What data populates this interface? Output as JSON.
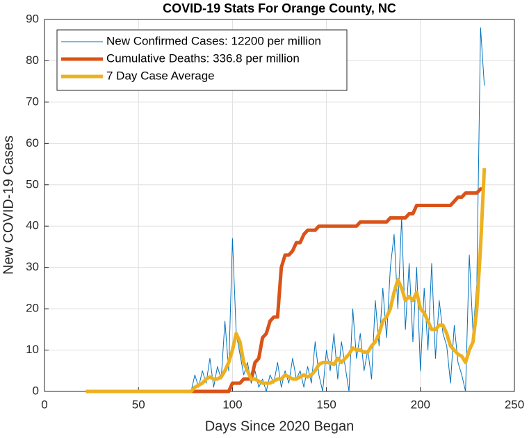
{
  "chart_data": {
    "type": "line",
    "title": "COVID-19 Stats For Orange County, NC",
    "x_label": "Days Since 2020 Began",
    "y_label": "New COVID-19 Cases",
    "x": [
      22,
      24,
      26,
      28,
      30,
      32,
      34,
      36,
      38,
      40,
      42,
      44,
      46,
      48,
      50,
      52,
      54,
      56,
      58,
      60,
      62,
      64,
      66,
      68,
      70,
      72,
      74,
      76,
      78,
      80,
      82,
      84,
      86,
      88,
      90,
      92,
      94,
      96,
      98,
      100,
      102,
      104,
      106,
      108,
      110,
      112,
      114,
      116,
      118,
      120,
      122,
      124,
      126,
      128,
      130,
      132,
      134,
      136,
      138,
      140,
      142,
      144,
      146,
      148,
      150,
      152,
      154,
      156,
      158,
      160,
      162,
      164,
      166,
      168,
      170,
      172,
      174,
      176,
      178,
      180,
      182,
      184,
      186,
      188,
      190,
      192,
      194,
      196,
      198,
      200,
      202,
      204,
      206,
      208,
      210,
      212,
      214,
      216,
      218,
      220,
      222,
      224,
      226,
      228,
      230,
      232,
      234
    ],
    "series": [
      {
        "name": "New Confirmed Cases: 12200 per million",
        "color": "#0072BD",
        "width": 1,
        "values": [
          0,
          0,
          0,
          0,
          0,
          0,
          0,
          0,
          0,
          0,
          0,
          0,
          0,
          0,
          0,
          0,
          0,
          0,
          0,
          0,
          0,
          0,
          0,
          0,
          0,
          0,
          0,
          0,
          0,
          4,
          1,
          5,
          2,
          8,
          1,
          6,
          3,
          17,
          5,
          37,
          14,
          9,
          4,
          7,
          2,
          5,
          1,
          3,
          0,
          4,
          2,
          7,
          1,
          5,
          2,
          8,
          3,
          5,
          1,
          6,
          2,
          12,
          4,
          0,
          10,
          5,
          14,
          3,
          12,
          6,
          0,
          20,
          8,
          14,
          5,
          10,
          3,
          22,
          11,
          25,
          13,
          30,
          38,
          20,
          42,
          15,
          31,
          12,
          30,
          5,
          25,
          10,
          31,
          8,
          22,
          14,
          11,
          2,
          16,
          7,
          4,
          0,
          33,
          14,
          26,
          88,
          74
        ]
      },
      {
        "name": "Cumulative Deaths: 336.8 per million",
        "color": "#D95319",
        "width": 5,
        "values": [
          0,
          0,
          0,
          0,
          0,
          0,
          0,
          0,
          0,
          0,
          0,
          0,
          0,
          0,
          0,
          0,
          0,
          0,
          0,
          0,
          0,
          0,
          0,
          0,
          0,
          0,
          0,
          0,
          0,
          0,
          0,
          0,
          0,
          0,
          0,
          0,
          0,
          0,
          0,
          2,
          2,
          2,
          3,
          3,
          3,
          7,
          8,
          13,
          14,
          17,
          18,
          18,
          30,
          33,
          33,
          34,
          36,
          36,
          38,
          39,
          39,
          39,
          40,
          40,
          40,
          40,
          40,
          40,
          40,
          40,
          40,
          40,
          40,
          41,
          41,
          41,
          41,
          41,
          41,
          41,
          41,
          42,
          42,
          42,
          42,
          42,
          43,
          43,
          45,
          45,
          45,
          45,
          45,
          45,
          45,
          45,
          45,
          45,
          46,
          47,
          47,
          48,
          48,
          48,
          48,
          49,
          49
        ]
      },
      {
        "name": "7 Day Case Average",
        "color": "#EDB120",
        "width": 5,
        "values": [
          0,
          0,
          0,
          0,
          0,
          0,
          0,
          0,
          0,
          0,
          0,
          0,
          0,
          0,
          0,
          0,
          0,
          0,
          0,
          0,
          0,
          0,
          0,
          0,
          0,
          0,
          0,
          0,
          0,
          1,
          1.5,
          2,
          3,
          3.5,
          3,
          3,
          3.5,
          5,
          7,
          10,
          14,
          12,
          7,
          5,
          3,
          3,
          2.5,
          2,
          2,
          2,
          2.5,
          3,
          3,
          4,
          3.5,
          3,
          3,
          3.5,
          4,
          3.5,
          4,
          5,
          6.5,
          7,
          7,
          7,
          6.5,
          8,
          7,
          8,
          9,
          10.5,
          10,
          10,
          9.5,
          9.5,
          11,
          12,
          14,
          17,
          18,
          20,
          24,
          27,
          25,
          22,
          23,
          22,
          24,
          20,
          19,
          17,
          15,
          15,
          16,
          16,
          14,
          11,
          10,
          9,
          8.5,
          7,
          10,
          12,
          20,
          35,
          54
        ]
      }
    ],
    "xlim": [
      0,
      250
    ],
    "xticks": [
      0,
      50,
      100,
      150,
      200,
      250
    ],
    "ylim": [
      0,
      90
    ],
    "yticks": [
      0,
      10,
      20,
      30,
      40,
      50,
      60,
      70,
      80,
      90
    ],
    "grid": true,
    "legend": "top-left"
  }
}
